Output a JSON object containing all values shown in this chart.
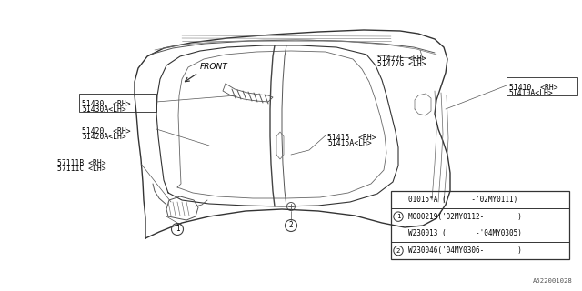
{
  "bg_color": "#ffffff",
  "line_color": "#666666",
  "dark_line": "#444444",
  "labels": {
    "front": "FRONT",
    "51477F": "51477F <RH>",
    "51477G": "51477G <LH>",
    "51410": "51410  <RH>",
    "51410A": "51410A<LH>",
    "51430": "51430  <RH>",
    "51430A": "51430A<LH>",
    "51420": "51420  <RH>",
    "51420A": "51420A<LH>",
    "51415": "51415  <RH>",
    "51415A": "51415A<LH>",
    "57111B": "57111B <RH>",
    "57111C": "57111C <LH>"
  },
  "table": {
    "row1a": "01015*A (      -'02MY0111)",
    "row1b": "M000219('02MY0112-        )",
    "row2a": "W230013 (       -'04MY0305)",
    "row2b": "W230046('04MY0306-        )"
  },
  "footnote": "A522001028",
  "fs_label": 5.8,
  "fs_table": 5.5,
  "fs_footnote": 5.2
}
